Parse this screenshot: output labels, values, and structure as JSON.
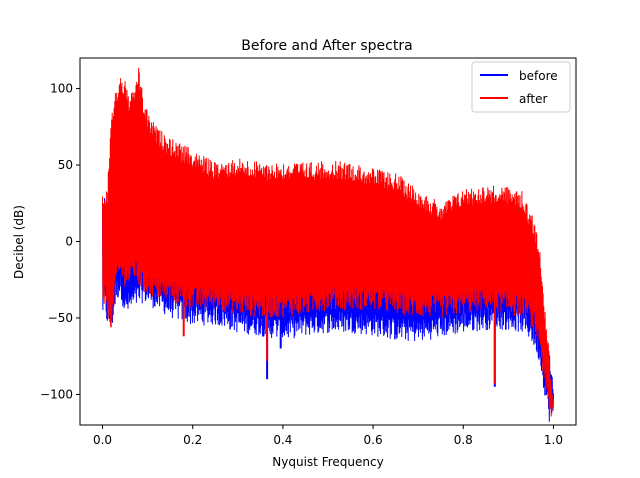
{
  "chart_data": {
    "type": "line",
    "title": "Before and After spectra",
    "xlabel": "Nyquist Frequency",
    "ylabel": "Decibel (dB)",
    "xlim": [
      -0.05,
      1.05
    ],
    "ylim": [
      -120,
      120
    ],
    "xticks": [
      "0.0",
      "0.2",
      "0.4",
      "0.6",
      "0.8",
      "1.0"
    ],
    "yticks": [
      "−100",
      "−50",
      "0",
      "50",
      "100"
    ],
    "xtick_values": [
      0.0,
      0.2,
      0.4,
      0.6,
      0.8,
      1.0
    ],
    "ytick_values": [
      -100,
      -50,
      0,
      50,
      100
    ],
    "grid": false,
    "legend_position": "top-right",
    "series": [
      {
        "name": "before",
        "color": "#0000ff",
        "envelope_x": [
          0.0,
          0.005,
          0.01,
          0.02,
          0.03,
          0.04,
          0.05,
          0.07,
          0.09,
          0.12,
          0.15,
          0.2,
          0.25,
          0.3,
          0.35,
          0.4,
          0.45,
          0.5,
          0.55,
          0.6,
          0.65,
          0.7,
          0.75,
          0.8,
          0.85,
          0.9,
          0.93,
          0.95,
          0.97,
          0.98,
          0.99,
          1.0
        ],
        "upper": [
          33,
          30,
          20,
          22,
          25,
          30,
          28,
          25,
          30,
          22,
          18,
          15,
          14,
          15,
          12,
          10,
          8,
          8,
          6,
          5,
          4,
          3,
          2,
          3,
          4,
          3,
          0,
          -10,
          -30,
          -50,
          -70,
          -90
        ],
        "lower": [
          -50,
          -45,
          -55,
          -60,
          -40,
          -35,
          -50,
          -45,
          -40,
          -45,
          -50,
          -55,
          -55,
          -60,
          -62,
          -65,
          -62,
          -60,
          -60,
          -62,
          -65,
          -66,
          -63,
          -60,
          -58,
          -58,
          -60,
          -65,
          -80,
          -100,
          -118,
          -120
        ]
      },
      {
        "name": "after",
        "color": "#ff0000",
        "envelope_x": [
          0.0,
          0.005,
          0.01,
          0.02,
          0.03,
          0.04,
          0.05,
          0.06,
          0.07,
          0.08,
          0.09,
          0.1,
          0.12,
          0.15,
          0.2,
          0.25,
          0.3,
          0.35,
          0.4,
          0.45,
          0.5,
          0.55,
          0.6,
          0.65,
          0.7,
          0.75,
          0.8,
          0.85,
          0.9,
          0.93,
          0.95,
          0.97,
          0.98,
          0.99,
          1.0
        ],
        "upper": [
          33,
          28,
          35,
          85,
          100,
          110,
          105,
          95,
          100,
          115,
          95,
          85,
          75,
          68,
          60,
          52,
          55,
          52,
          52,
          52,
          53,
          52,
          48,
          45,
          35,
          25,
          35,
          37,
          36,
          33,
          20,
          0,
          -40,
          -70,
          -100
        ],
        "lower": [
          -50,
          -42,
          -50,
          -58,
          -30,
          -25,
          -30,
          -30,
          -25,
          -30,
          -35,
          -35,
          -38,
          -40,
          -45,
          -45,
          -48,
          -50,
          -50,
          -48,
          -45,
          -45,
          -45,
          -48,
          -50,
          -50,
          -48,
          -45,
          -48,
          -50,
          -55,
          -70,
          -95,
          -115,
          -120
        ]
      }
    ],
    "dips": [
      {
        "series": "before",
        "x": 0.365,
        "y": -90
      },
      {
        "series": "after",
        "x": 0.365,
        "y": -78
      },
      {
        "series": "before",
        "x": 0.87,
        "y": -95
      },
      {
        "series": "after",
        "x": 0.87,
        "y": -93
      },
      {
        "series": "before",
        "x": 0.395,
        "y": -70
      },
      {
        "series": "after",
        "x": 0.18,
        "y": -62
      }
    ]
  }
}
